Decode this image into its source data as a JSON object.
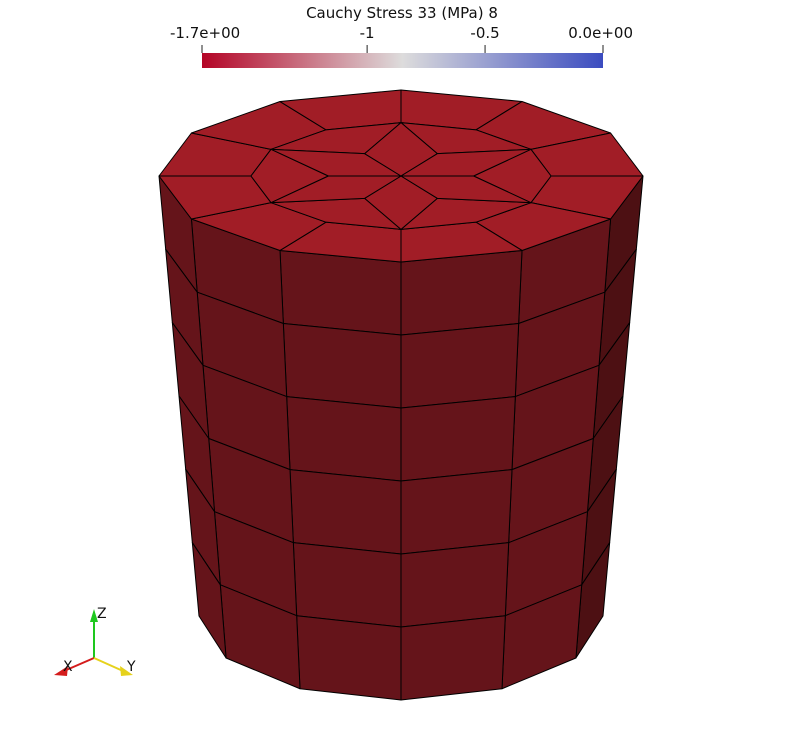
{
  "colorbar": {
    "title": "Cauchy Stress 33 (MPa) 8",
    "tick_labels": [
      "-1.7e+00",
      "-1",
      "-0.5",
      "0.0e+00"
    ],
    "tick_values": [
      -1.7,
      -1.0,
      -0.5,
      0.0
    ],
    "range": [
      -1.7,
      0.0
    ],
    "colormap": [
      "#b40426",
      "#dddcdc",
      "#3b4cc0"
    ]
  },
  "mesh": {
    "top_face_color": "#a11d26",
    "side_face_color": "#65141a",
    "dark_side_color": "#4d1013",
    "edge_color": "#000000",
    "value": -1.7
  },
  "axes": {
    "z_label": "Z",
    "x_label": "X",
    "y_label": "Y",
    "z_color": "#1ec71e",
    "x_color": "#d41c1c",
    "y_color": "#e6d21c"
  }
}
